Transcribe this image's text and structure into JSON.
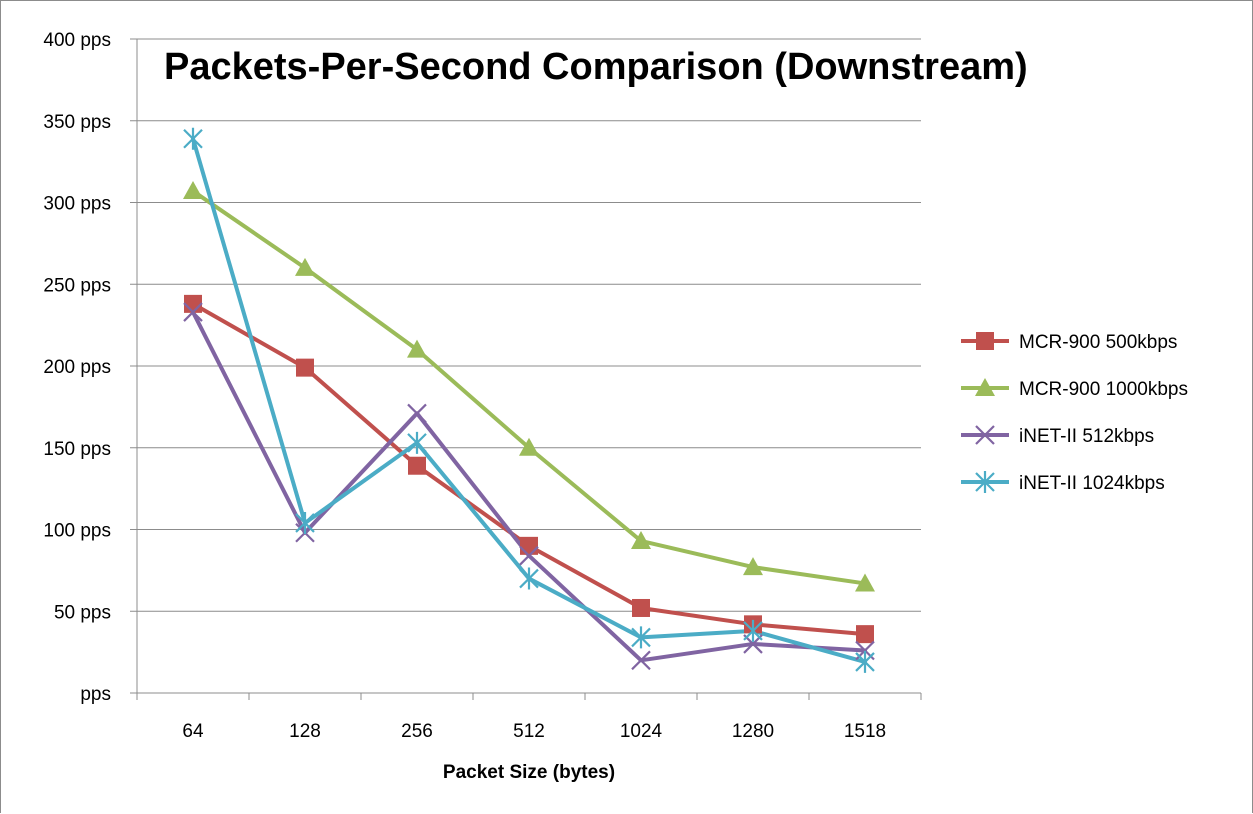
{
  "chart_data": {
    "type": "line",
    "title": "Packets-Per-Second Comparison (Downstream)",
    "xlabel": "Packet Size (bytes)",
    "ylabel": "",
    "categories": [
      "64",
      "128",
      "256",
      "512",
      "1024",
      "1280",
      "1518"
    ],
    "y_tick_labels": [
      "pps",
      "50 pps",
      "100 pps",
      "150 pps",
      "200 pps",
      "250 pps",
      "300 pps",
      "350 pps",
      "400 pps"
    ],
    "y_tick_values": [
      0,
      50,
      100,
      150,
      200,
      250,
      300,
      350,
      400
    ],
    "ylim": [
      0,
      400
    ],
    "grid": true,
    "legend_position": "right",
    "series": [
      {
        "name": "MCR-900 500kbps",
        "color": "#C0504D",
        "marker": "square",
        "values": [
          238,
          199,
          139,
          90,
          52,
          42,
          36
        ]
      },
      {
        "name": "MCR-900 1000kbps",
        "color": "#9BBB59",
        "marker": "triangle",
        "values": [
          307,
          260,
          210,
          150,
          93,
          77,
          67
        ]
      },
      {
        "name": "iNET-II 512kbps",
        "color": "#8064A2",
        "marker": "x",
        "values": [
          233,
          98,
          171,
          84,
          20,
          30,
          26
        ]
      },
      {
        "name": "iNET-II 1024kbps",
        "color": "#4BACC6",
        "marker": "star",
        "values": [
          339,
          104,
          153,
          70,
          34,
          38,
          19
        ]
      }
    ]
  }
}
